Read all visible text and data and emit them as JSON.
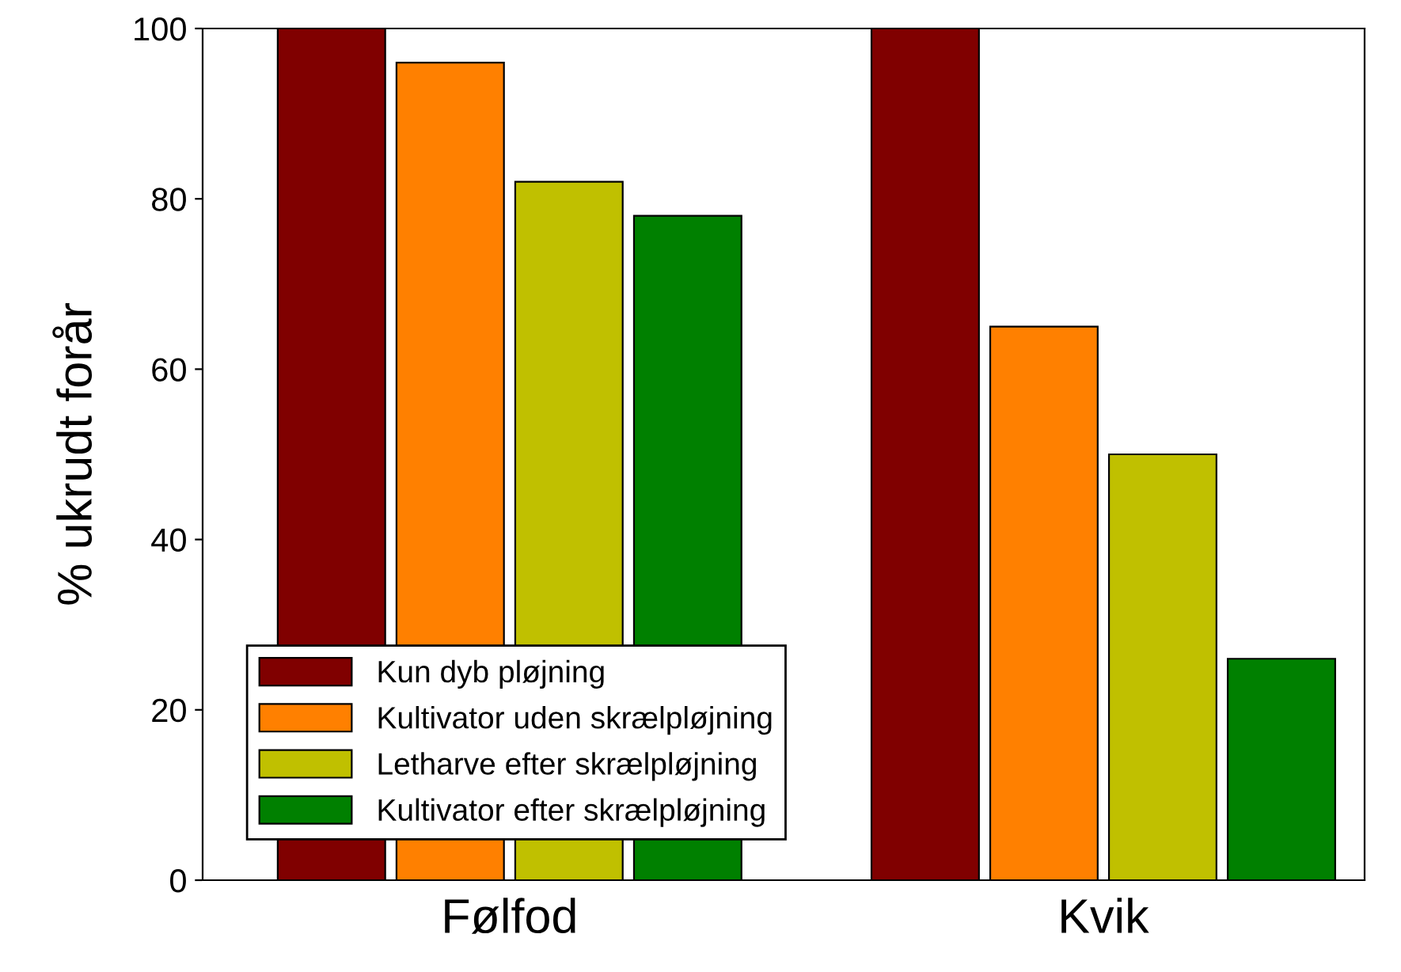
{
  "chart_data": {
    "type": "bar",
    "ylabel": "% ukrudt forår",
    "categories": [
      "Følfod",
      "Kvik"
    ],
    "series": [
      {
        "name": "Kun dyb pløjning",
        "color": "#800000",
        "values": [
          100,
          100
        ]
      },
      {
        "name": "Kultivator uden skrælpløjning",
        "color": "#ff8000",
        "values": [
          96,
          65
        ]
      },
      {
        "name": "Letharve efter skrælpløjning",
        "color": "#c0c000",
        "values": [
          82,
          50
        ]
      },
      {
        "name": "Kultivator efter skrælpløjning",
        "color": "#008000",
        "values": [
          78,
          26
        ]
      }
    ],
    "ylim": [
      0,
      100
    ],
    "yticks": [
      0,
      20,
      40,
      60,
      80,
      100
    ],
    "legend": "bottom left",
    "grid": false
  }
}
